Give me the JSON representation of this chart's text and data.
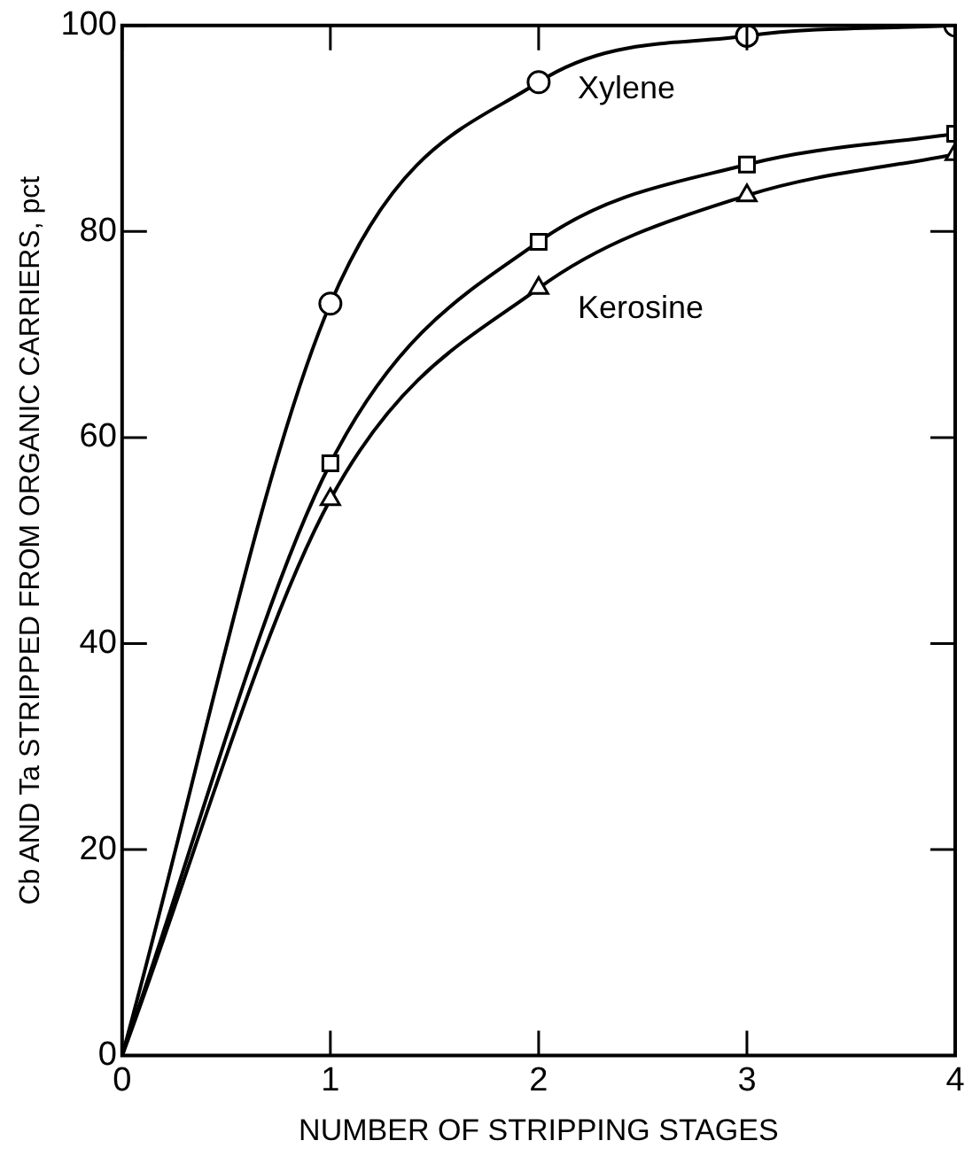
{
  "chart_data": {
    "type": "line",
    "xlabel": "NUMBER OF STRIPPING STAGES",
    "ylabel": "Cb AND Ta STRIPPED FROM ORGANIC CARRIERS, pct",
    "x": [
      0,
      1,
      2,
      3,
      4
    ],
    "series": [
      {
        "name": "Xylene",
        "color": "#000000",
        "marker": "circle",
        "values": [
          0,
          73,
          94.5,
          99,
          100
        ]
      },
      {
        "color": "#000000",
        "marker": "square",
        "values": [
          0,
          57.5,
          79,
          86.5,
          89.5
        ]
      },
      {
        "name": "Kerosine",
        "color": "#000000",
        "marker": "triangle",
        "values": [
          0,
          54,
          74.5,
          83.5,
          87.5
        ]
      }
    ],
    "xlim": [
      0,
      4
    ],
    "xticks": [
      0,
      1,
      2,
      3,
      4
    ],
    "ylim": [
      0,
      100
    ],
    "yticks": [
      0,
      20,
      40,
      60,
      80,
      100
    ],
    "grid": false,
    "legend": false,
    "line_style": "solid"
  }
}
